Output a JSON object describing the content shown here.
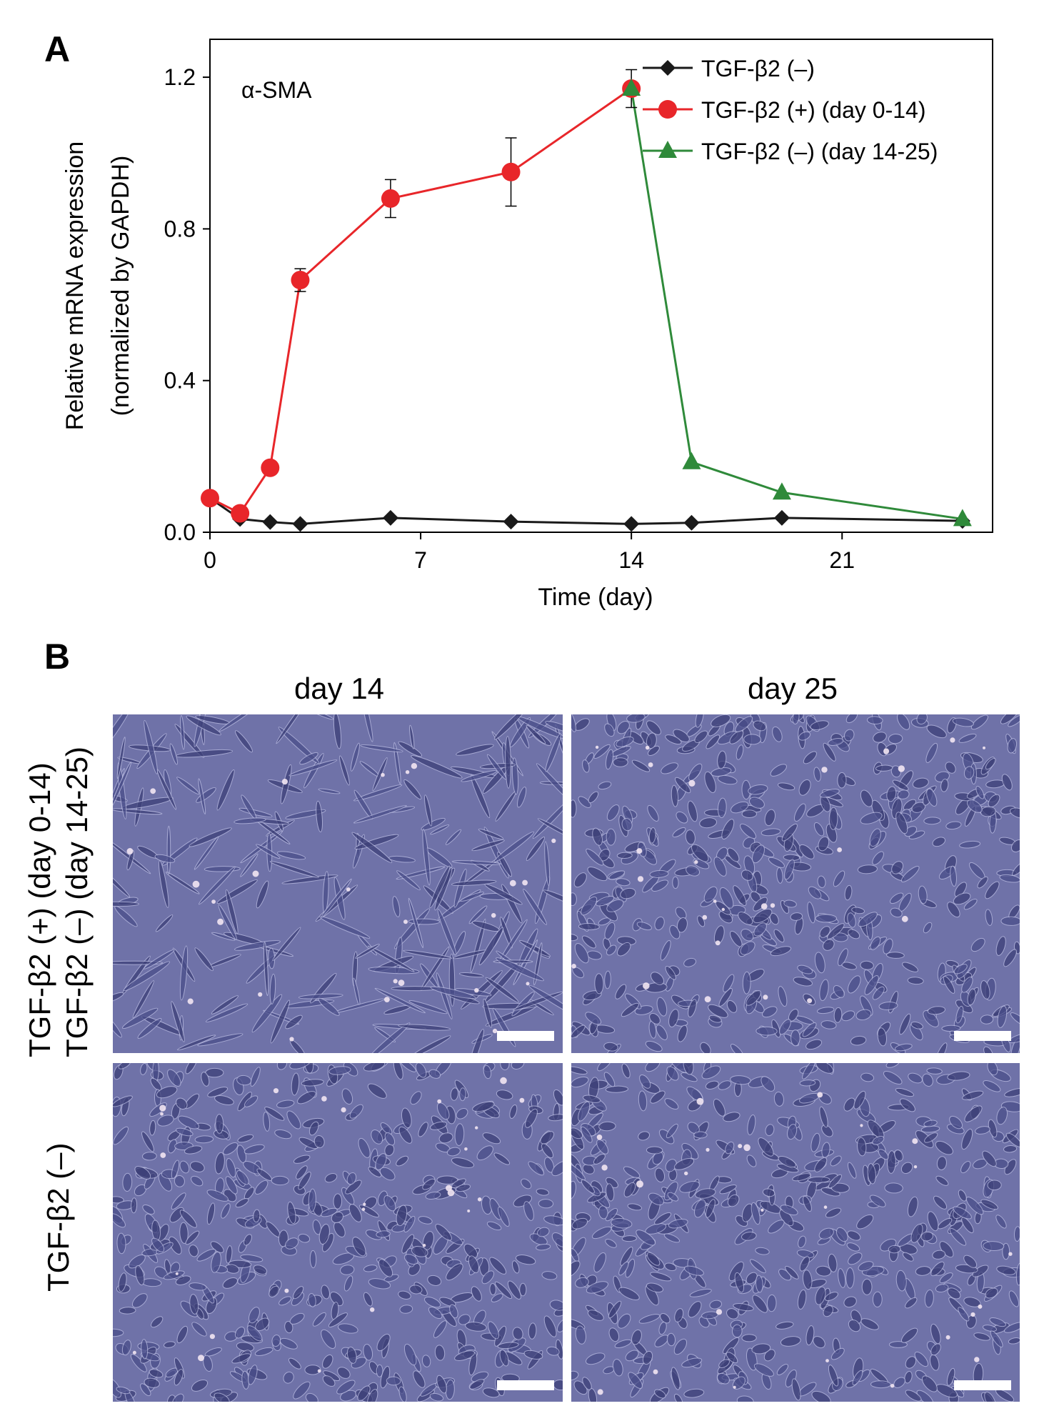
{
  "panel_a": {
    "letter": "A"
  },
  "panel_b": {
    "letter": "B",
    "column_titles": [
      "day 14",
      "day 25"
    ],
    "row_labels": [
      [
        "TGF-β2 (+) (day 0-14)",
        "TGF-β2 (–) (day 14-25)"
      ],
      [
        "TGF-β2 (–)"
      ]
    ],
    "image_color": "#6f72a8"
  },
  "chart_data": {
    "type": "line",
    "annotation": "α-SMA",
    "xlabel": "Time (day)",
    "ylabel": [
      "Relative mRNA expression",
      "(normalized by GAPDH)"
    ],
    "xlim": [
      0,
      26
    ],
    "ylim": [
      0,
      1.3
    ],
    "xticks": [
      0,
      7,
      14,
      21
    ],
    "yticks": [
      0.0,
      0.4,
      0.8,
      1.2
    ],
    "ytick_labels": [
      "0.0",
      "0.4",
      "0.8",
      "1.2"
    ],
    "grid": false,
    "legend_position": "top-right",
    "series": [
      {
        "name": "TGF-β2 (–)",
        "color": "#1a1a1a",
        "marker": "diamond",
        "x": [
          0,
          1,
          2,
          3,
          6,
          10,
          14,
          16,
          19,
          25
        ],
        "y": [
          0.09,
          0.035,
          0.027,
          0.022,
          0.038,
          0.028,
          0.022,
          0.025,
          0.038,
          0.03
        ]
      },
      {
        "name": "TGF-β2 (+) (day 0-14)",
        "color": "#e8262a",
        "marker": "circle",
        "x": [
          0,
          1,
          2,
          3,
          6,
          10,
          14
        ],
        "y": [
          0.09,
          0.05,
          0.17,
          0.665,
          0.88,
          0.95,
          1.17
        ],
        "err": [
          0,
          0,
          0,
          0.03,
          0.05,
          0.09,
          0.05
        ]
      },
      {
        "name": "TGF-β2 (–) (day 14-25)",
        "color": "#2f8a3a",
        "marker": "triangle",
        "x": [
          14,
          16,
          19,
          25
        ],
        "y": [
          1.17,
          0.185,
          0.105,
          0.035
        ]
      }
    ]
  }
}
